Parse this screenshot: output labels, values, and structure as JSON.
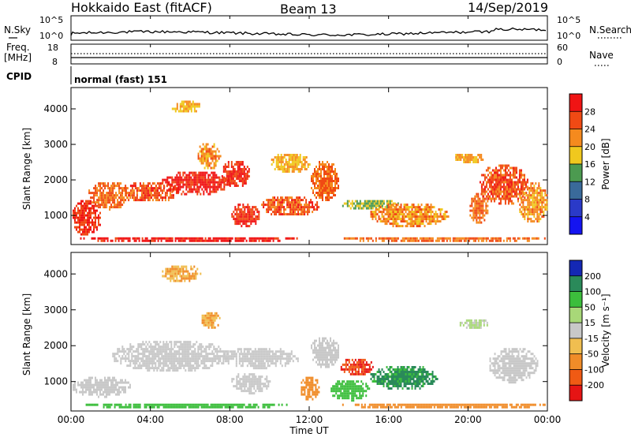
{
  "header": {
    "station": "Hokkaido East (fitACF)",
    "beam": "Beam 13",
    "date": "14/Sep/2019"
  },
  "panels": {
    "nsky": {
      "left_label": "N.Sky",
      "left_ticks": [
        "10^5",
        "10^0"
      ],
      "right_ticks": [
        "10^5",
        "10^0"
      ],
      "right_label": "N.Search"
    },
    "freq": {
      "left_label_line1": "Freq.",
      "left_label_line2": "[MHz]",
      "left_ticks": [
        "18",
        "8"
      ],
      "right_ticks": [
        "60",
        "0"
      ],
      "right_label": "Nave"
    },
    "cpid": {
      "label": "CPID",
      "mode_text": "normal (fast) 151"
    }
  },
  "power_colorbar": {
    "label": "Power [dB]",
    "ticks": [
      "28",
      "24",
      "20",
      "16",
      "12",
      "8",
      "4"
    ],
    "colors": [
      "#f01414",
      "#f04a14",
      "#f58a1e",
      "#f0c81e",
      "#4c9a50",
      "#3a6a9a",
      "#2a3ac8",
      "#1414f0"
    ]
  },
  "velocity_colorbar": {
    "label": "Velocity [m s⁻¹]",
    "ticks": [
      "200",
      "100",
      "50",
      "15",
      "-15",
      "-50",
      "-100",
      "-200"
    ],
    "colors": [
      "#1428b4",
      "#2a8a5a",
      "#3cbe3c",
      "#a8d878",
      "#c8c8c8",
      "#f0be50",
      "#f08c28",
      "#f05a14",
      "#e61414"
    ]
  },
  "xaxis": {
    "label": "Time UT",
    "ticks": [
      "00:00",
      "04:00",
      "08:00",
      "12:00",
      "16:00",
      "20:00",
      "00:00"
    ]
  },
  "chart_data": [
    {
      "type": "heatmap",
      "name": "power",
      "ylabel": "Slant Range [km]",
      "xlabel": "",
      "xlim": [
        0,
        24
      ],
      "ylim": [
        180,
        4600
      ],
      "yticks": [
        1000,
        2000,
        3000,
        4000
      ],
      "blobs": [
        {
          "t0": 0.0,
          "t1": 1.5,
          "r0": 450,
          "r1": 1500,
          "level": 26
        },
        {
          "t0": 0.8,
          "t1": 3.0,
          "r0": 1200,
          "r1": 2000,
          "level": 22
        },
        {
          "t0": 2.5,
          "t1": 5.5,
          "r0": 1400,
          "r1": 2000,
          "level": 24
        },
        {
          "t0": 4.5,
          "t1": 8.0,
          "r0": 1600,
          "r1": 2300,
          "level": 28
        },
        {
          "t0": 6.3,
          "t1": 7.5,
          "r0": 2300,
          "r1": 3100,
          "level": 20
        },
        {
          "t0": 5.0,
          "t1": 6.5,
          "r0": 3900,
          "r1": 4300,
          "level": 18
        },
        {
          "t0": 7.5,
          "t1": 9.0,
          "r0": 1800,
          "r1": 2600,
          "level": 26
        },
        {
          "t0": 8.0,
          "t1": 9.5,
          "r0": 700,
          "r1": 1400,
          "level": 26
        },
        {
          "t0": 9.5,
          "t1": 12.5,
          "r0": 1000,
          "r1": 1600,
          "level": 24
        },
        {
          "t0": 10.0,
          "t1": 12.0,
          "r0": 2200,
          "r1": 2800,
          "level": 18
        },
        {
          "t0": 12.0,
          "t1": 13.5,
          "r0": 1400,
          "r1": 2600,
          "level": 22
        },
        {
          "t0": 13.5,
          "t1": 16.5,
          "r0": 1200,
          "r1": 1500,
          "level": 14
        },
        {
          "t0": 15.0,
          "t1": 19.0,
          "r0": 700,
          "r1": 1400,
          "level": 20
        },
        {
          "t0": 20.0,
          "t1": 21.0,
          "r0": 800,
          "r1": 1700,
          "level": 22
        },
        {
          "t0": 20.5,
          "t1": 23.0,
          "r0": 1300,
          "r1": 2500,
          "level": 24
        },
        {
          "t0": 19.2,
          "t1": 20.8,
          "r0": 2500,
          "r1": 2800,
          "level": 18
        },
        {
          "t0": 22.5,
          "t1": 24.0,
          "r0": 800,
          "r1": 2000,
          "level": 20
        },
        {
          "t0": 0.3,
          "t1": 11.5,
          "r0": 280,
          "r1": 450,
          "level": 28
        },
        {
          "t0": 13.5,
          "t1": 24.0,
          "r0": 280,
          "r1": 450,
          "level": 22
        }
      ]
    },
    {
      "type": "heatmap",
      "name": "velocity",
      "ylabel": "Slant Range [km]",
      "xlabel": "Time UT",
      "xlim": [
        0,
        24
      ],
      "ylim": [
        180,
        4600
      ],
      "yticks": [
        1000,
        2000,
        3000,
        4000
      ],
      "blobs": [
        {
          "t0": 0.0,
          "t1": 3.0,
          "r0": 600,
          "r1": 1200,
          "level": 0
        },
        {
          "t0": 2.0,
          "t1": 8.0,
          "r0": 1300,
          "r1": 2200,
          "level": 0
        },
        {
          "t0": 7.5,
          "t1": 11.5,
          "r0": 1400,
          "r1": 2000,
          "level": 0
        },
        {
          "t0": 8.0,
          "t1": 10.0,
          "r0": 700,
          "r1": 1300,
          "level": 0
        },
        {
          "t0": 11.5,
          "t1": 12.5,
          "r0": 500,
          "r1": 1200,
          "level": -40
        },
        {
          "t0": 12.0,
          "t1": 13.5,
          "r0": 1400,
          "r1": 2300,
          "level": 0
        },
        {
          "t0": 13.5,
          "t1": 15.2,
          "r0": 1200,
          "r1": 1700,
          "level": -150
        },
        {
          "t0": 13.0,
          "t1": 15.0,
          "r0": 500,
          "r1": 1100,
          "level": 40
        },
        {
          "t0": 15.0,
          "t1": 18.5,
          "r0": 800,
          "r1": 1500,
          "level": 80
        },
        {
          "t0": 21.0,
          "t1": 23.5,
          "r0": 1000,
          "r1": 2000,
          "level": 0
        },
        {
          "t0": 19.5,
          "t1": 21.0,
          "r0": 2500,
          "r1": 2800,
          "level": 15
        },
        {
          "t0": 4.5,
          "t1": 6.5,
          "r0": 3800,
          "r1": 4300,
          "level": -30
        },
        {
          "t0": 6.5,
          "t1": 7.5,
          "r0": 2500,
          "r1": 3000,
          "level": -30
        },
        {
          "t0": 13.5,
          "t1": 24.0,
          "r0": 280,
          "r1": 450,
          "level": -60
        },
        {
          "t0": 0.5,
          "t1": 11.0,
          "r0": 280,
          "r1": 450,
          "level": 40
        }
      ]
    }
  ]
}
